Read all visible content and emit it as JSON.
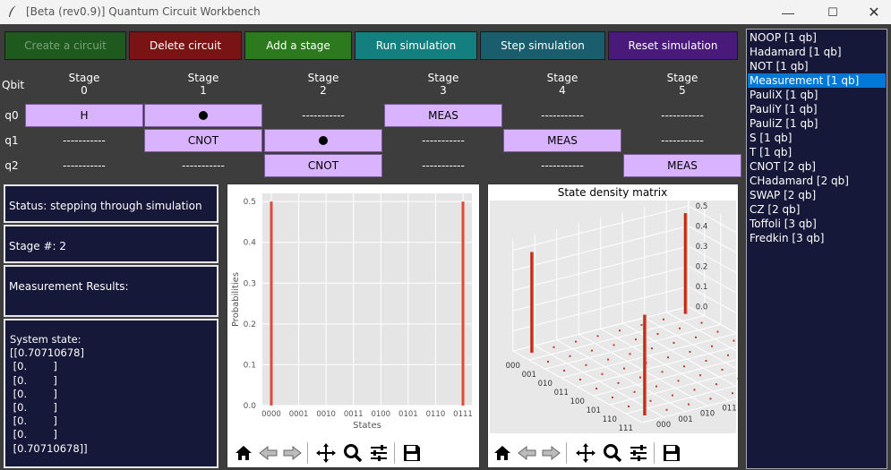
{
  "window": {
    "title": "[Beta (rev0.9)] Quantum Circuit Workbench",
    "controls": [
      "—",
      "☐",
      "✕"
    ]
  },
  "toolbar": {
    "buttons": [
      {
        "label": "Create a circuit",
        "bg": "#1e5a1e",
        "fg": "#7aa07a"
      },
      {
        "label": "Delete circuit",
        "bg": "#7a1414",
        "fg": "#ffffff"
      },
      {
        "label": "Add a stage",
        "bg": "#2d7a1e",
        "fg": "#ffffff"
      },
      {
        "label": "Run simulation",
        "bg": "#137f7f",
        "fg": "#ffffff"
      },
      {
        "label": "Step simulation",
        "bg": "#1a5e6e",
        "fg": "#ffffff"
      },
      {
        "label": "Reset simulation",
        "bg": "#4a1a7a",
        "fg": "#ffffff"
      }
    ]
  },
  "circuit": {
    "qbit_header": "Qbit",
    "stages": [
      {
        "line1": "Stage",
        "line2": "0"
      },
      {
        "line1": "Stage",
        "line2": "1"
      },
      {
        "line1": "Stage",
        "line2": "2"
      },
      {
        "line1": "Stage",
        "line2": "3"
      },
      {
        "line1": "Stage",
        "line2": "4"
      },
      {
        "line1": "Stage",
        "line2": "5"
      }
    ],
    "rows": [
      {
        "label": "q0",
        "cells": [
          {
            "kind": "gate",
            "text": "H"
          },
          {
            "kind": "control",
            "text": ""
          },
          {
            "kind": "empty",
            "text": "-----------"
          },
          {
            "kind": "gate",
            "text": "MEAS"
          },
          {
            "kind": "empty",
            "text": "-----------"
          },
          {
            "kind": "empty",
            "text": "-----------"
          }
        ]
      },
      {
        "label": "q1",
        "cells": [
          {
            "kind": "empty",
            "text": "-----------"
          },
          {
            "kind": "gate",
            "text": "CNOT"
          },
          {
            "kind": "control",
            "text": ""
          },
          {
            "kind": "empty",
            "text": "-----------"
          },
          {
            "kind": "gate",
            "text": "MEAS"
          },
          {
            "kind": "empty",
            "text": "-----------"
          }
        ]
      },
      {
        "label": "q2",
        "cells": [
          {
            "kind": "empty",
            "text": "-----------"
          },
          {
            "kind": "empty",
            "text": "-----------"
          },
          {
            "kind": "gate",
            "text": "CNOT"
          },
          {
            "kind": "empty",
            "text": "-----------"
          },
          {
            "kind": "empty",
            "text": "-----------"
          },
          {
            "kind": "gate",
            "text": "MEAS"
          }
        ]
      }
    ]
  },
  "status": {
    "status_text": "Status: stepping through simulation",
    "stage_text": "Stage #: 2",
    "measurement_text": "Measurement Results:",
    "system_state_lines": [
      "System state:",
      "[[0.70710678]",
      " [0.        ]",
      " [0.        ]",
      " [0.        ]",
      " [0.        ]",
      " [0.        ]",
      " [0.        ]",
      " [0.70710678]]"
    ]
  },
  "prob_plot": {
    "ylabel": "Probabilities",
    "xlabel": "States",
    "bar_color": "#e24a33"
  },
  "chart_data": [
    {
      "type": "bar",
      "title": "",
      "xlabel": "States",
      "ylabel": "Probabilities",
      "categories": [
        "0000",
        "0001",
        "0010",
        "0011",
        "0100",
        "0101",
        "0110",
        "0111"
      ],
      "values": [
        0.5,
        0,
        0,
        0,
        0,
        0,
        0,
        0.5
      ],
      "ylim": [
        0,
        0.52
      ],
      "yticks": [
        "0.0",
        "0.1",
        "0.2",
        "0.3",
        "0.4",
        "0.5"
      ],
      "grid": true
    },
    {
      "type": "bar3d",
      "title": "State density matrix",
      "axis_ticks": [
        "000",
        "001",
        "010",
        "011",
        "100",
        "101",
        "110",
        "111"
      ],
      "z_ticks": [
        "0.0",
        "0.1",
        "0.2",
        "0.3",
        "0.4",
        "0.5"
      ],
      "nonzero_entries": [
        {
          "row": "000",
          "col": "000",
          "value": 0.5
        },
        {
          "row": "000",
          "col": "111",
          "value": 0.5
        },
        {
          "row": "111",
          "col": "000",
          "value": 0.5
        },
        {
          "row": "111",
          "col": "111",
          "value": 0.5
        }
      ]
    }
  ],
  "density_plot": {
    "title": "State density matrix"
  },
  "gate_list": {
    "items": [
      "NOOP [1 qb]",
      "Hadamard [1 qb]",
      "NOT [1 qb]",
      "Measurement [1 qb]",
      "PauliX [1 qb]",
      "PauliY [1 qb]",
      "PauliZ [1 qb]",
      "S [1 qb]",
      "T [1 qb]",
      "CNOT [2 qb]",
      "CHadamard [2 qb]",
      "SWAP [2 qb]",
      "CZ [2 qb]",
      "Toffoli [3 qb]",
      "Fredkin [3 qb]"
    ],
    "selected_index": 3
  }
}
